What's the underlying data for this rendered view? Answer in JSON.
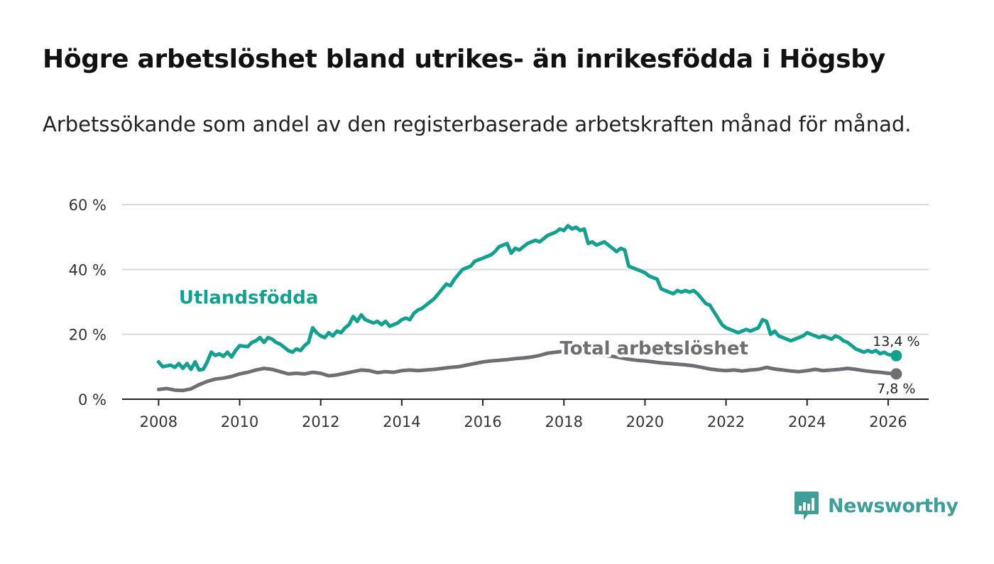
{
  "title": "Högre arbetslöshet bland utrikes- än inrikesfödda i Högsby",
  "subtitle": "Arbetssökande som andel av den registerbaserade arbetskraften månad för månad.",
  "brand": {
    "name": "Newsworthy"
  },
  "colors": {
    "foreign_born": "#14a090",
    "total": "#6e6e73",
    "grid": "#d9d9d9",
    "axis": "#222222",
    "brand": "#3f9e98"
  },
  "chart_data": {
    "type": "line",
    "xlabel": "",
    "ylabel": "",
    "xlim": [
      2007.1,
      2027.0
    ],
    "ylim": [
      0,
      60
    ],
    "x_ticks": [
      {
        "value": 2008,
        "label": "2008"
      },
      {
        "value": 2010,
        "label": "2010"
      },
      {
        "value": 2012,
        "label": "2012"
      },
      {
        "value": 2014,
        "label": "2014"
      },
      {
        "value": 2016,
        "label": "2016"
      },
      {
        "value": 2018,
        "label": "2018"
      },
      {
        "value": 2020,
        "label": "2020"
      },
      {
        "value": 2022,
        "label": "2022"
      },
      {
        "value": 2024,
        "label": "2024"
      },
      {
        "value": 2026,
        "label": "2026"
      }
    ],
    "y_ticks": [
      {
        "value": 0,
        "label": "0 %"
      },
      {
        "value": 20,
        "label": "20 %"
      },
      {
        "value": 40,
        "label": "40 %"
      },
      {
        "value": 60,
        "label": "60 %"
      }
    ],
    "grid": true,
    "series": [
      {
        "name": "Utlandsfödda",
        "color": "#14a090",
        "label_at": [
          2008.5,
          29.5
        ],
        "end_label": "13,4 %",
        "points": [
          [
            2008.0,
            11.5
          ],
          [
            2008.1,
            10.0
          ],
          [
            2008.3,
            10.5
          ],
          [
            2008.4,
            9.8
          ],
          [
            2008.5,
            11.0
          ],
          [
            2008.6,
            9.5
          ],
          [
            2008.7,
            11.0
          ],
          [
            2008.8,
            9.2
          ],
          [
            2008.9,
            11.5
          ],
          [
            2009.0,
            9.0
          ],
          [
            2009.1,
            9.2
          ],
          [
            2009.2,
            11.5
          ],
          [
            2009.3,
            14.5
          ],
          [
            2009.4,
            13.5
          ],
          [
            2009.5,
            14.0
          ],
          [
            2009.6,
            13.2
          ],
          [
            2009.7,
            14.5
          ],
          [
            2009.8,
            13.0
          ],
          [
            2009.9,
            15.0
          ],
          [
            2010.0,
            16.5
          ],
          [
            2010.2,
            16.2
          ],
          [
            2010.3,
            17.5
          ],
          [
            2010.4,
            18.0
          ],
          [
            2010.5,
            19.0
          ],
          [
            2010.6,
            17.5
          ],
          [
            2010.7,
            19.0
          ],
          [
            2010.8,
            18.5
          ],
          [
            2010.9,
            17.5
          ],
          [
            2011.0,
            17.0
          ],
          [
            2011.1,
            16.0
          ],
          [
            2011.2,
            15.0
          ],
          [
            2011.3,
            14.5
          ],
          [
            2011.4,
            15.5
          ],
          [
            2011.5,
            15.0
          ],
          [
            2011.6,
            16.5
          ],
          [
            2011.7,
            17.5
          ],
          [
            2011.8,
            22.0
          ],
          [
            2011.9,
            20.5
          ],
          [
            2012.0,
            19.5
          ],
          [
            2012.1,
            19.0
          ],
          [
            2012.2,
            20.5
          ],
          [
            2012.3,
            19.5
          ],
          [
            2012.4,
            21.0
          ],
          [
            2012.5,
            20.5
          ],
          [
            2012.6,
            22.0
          ],
          [
            2012.7,
            23.0
          ],
          [
            2012.8,
            25.5
          ],
          [
            2012.9,
            24.0
          ],
          [
            2013.0,
            26.0
          ],
          [
            2013.1,
            24.5
          ],
          [
            2013.2,
            24.0
          ],
          [
            2013.3,
            23.5
          ],
          [
            2013.4,
            24.0
          ],
          [
            2013.5,
            23.0
          ],
          [
            2013.6,
            24.0
          ],
          [
            2013.7,
            22.5
          ],
          [
            2013.8,
            23.0
          ],
          [
            2013.9,
            23.5
          ],
          [
            2014.0,
            24.5
          ],
          [
            2014.1,
            25.0
          ],
          [
            2014.2,
            24.5
          ],
          [
            2014.3,
            26.5
          ],
          [
            2014.4,
            27.5
          ],
          [
            2014.5,
            28.0
          ],
          [
            2014.6,
            29.0
          ],
          [
            2014.7,
            30.0
          ],
          [
            2014.8,
            31.0
          ],
          [
            2014.9,
            32.5
          ],
          [
            2015.0,
            34.0
          ],
          [
            2015.1,
            35.5
          ],
          [
            2015.2,
            35.0
          ],
          [
            2015.3,
            37.0
          ],
          [
            2015.4,
            38.5
          ],
          [
            2015.5,
            40.0
          ],
          [
            2015.6,
            40.5
          ],
          [
            2015.7,
            41.0
          ],
          [
            2015.8,
            42.5
          ],
          [
            2015.9,
            43.0
          ],
          [
            2016.0,
            43.5
          ],
          [
            2016.1,
            44.0
          ],
          [
            2016.2,
            44.5
          ],
          [
            2016.3,
            45.5
          ],
          [
            2016.4,
            47.0
          ],
          [
            2016.5,
            47.5
          ],
          [
            2016.6,
            48.0
          ],
          [
            2016.7,
            45.0
          ],
          [
            2016.8,
            46.5
          ],
          [
            2016.9,
            46.0
          ],
          [
            2017.0,
            47.0
          ],
          [
            2017.1,
            48.0
          ],
          [
            2017.2,
            48.5
          ],
          [
            2017.3,
            49.0
          ],
          [
            2017.4,
            48.5
          ],
          [
            2017.5,
            49.5
          ],
          [
            2017.6,
            50.5
          ],
          [
            2017.7,
            51.0
          ],
          [
            2017.8,
            51.5
          ],
          [
            2017.9,
            52.5
          ],
          [
            2018.0,
            52.0
          ],
          [
            2018.1,
            53.5
          ],
          [
            2018.2,
            52.5
          ],
          [
            2018.3,
            53.0
          ],
          [
            2018.4,
            52.0
          ],
          [
            2018.5,
            52.5
          ],
          [
            2018.6,
            48.0
          ],
          [
            2018.7,
            48.5
          ],
          [
            2018.8,
            47.5
          ],
          [
            2018.9,
            48.0
          ],
          [
            2019.0,
            48.5
          ],
          [
            2019.1,
            47.5
          ],
          [
            2019.2,
            46.5
          ],
          [
            2019.3,
            45.5
          ],
          [
            2019.4,
            46.5
          ],
          [
            2019.5,
            46.0
          ],
          [
            2019.6,
            41.0
          ],
          [
            2019.7,
            40.5
          ],
          [
            2019.8,
            40.0
          ],
          [
            2019.9,
            39.5
          ],
          [
            2020.0,
            39.0
          ],
          [
            2020.1,
            38.0
          ],
          [
            2020.2,
            37.5
          ],
          [
            2020.3,
            37.0
          ],
          [
            2020.4,
            34.0
          ],
          [
            2020.5,
            33.5
          ],
          [
            2020.6,
            33.0
          ],
          [
            2020.7,
            32.5
          ],
          [
            2020.8,
            33.5
          ],
          [
            2020.9,
            33.0
          ],
          [
            2021.0,
            33.5
          ],
          [
            2021.1,
            33.0
          ],
          [
            2021.2,
            33.5
          ],
          [
            2021.3,
            32.5
          ],
          [
            2021.4,
            31.0
          ],
          [
            2021.5,
            29.5
          ],
          [
            2021.6,
            29.0
          ],
          [
            2021.7,
            27.0
          ],
          [
            2021.8,
            25.0
          ],
          [
            2021.9,
            23.0
          ],
          [
            2022.0,
            22.0
          ],
          [
            2022.1,
            21.5
          ],
          [
            2022.2,
            21.0
          ],
          [
            2022.3,
            20.5
          ],
          [
            2022.4,
            21.0
          ],
          [
            2022.5,
            21.5
          ],
          [
            2022.6,
            21.0
          ],
          [
            2022.7,
            21.5
          ],
          [
            2022.8,
            22.0
          ],
          [
            2022.9,
            24.5
          ],
          [
            2023.0,
            24.0
          ],
          [
            2023.1,
            20.0
          ],
          [
            2023.2,
            21.0
          ],
          [
            2023.3,
            19.5
          ],
          [
            2023.4,
            19.0
          ],
          [
            2023.5,
            18.5
          ],
          [
            2023.6,
            18.0
          ],
          [
            2023.7,
            18.5
          ],
          [
            2023.8,
            19.0
          ],
          [
            2023.9,
            19.5
          ],
          [
            2024.0,
            20.5
          ],
          [
            2024.1,
            20.0
          ],
          [
            2024.2,
            19.5
          ],
          [
            2024.3,
            19.0
          ],
          [
            2024.4,
            19.5
          ],
          [
            2024.5,
            19.0
          ],
          [
            2024.6,
            18.5
          ],
          [
            2024.7,
            19.5
          ],
          [
            2024.8,
            19.0
          ],
          [
            2024.9,
            18.0
          ],
          [
            2025.0,
            17.5
          ],
          [
            2025.1,
            16.5
          ],
          [
            2025.2,
            15.5
          ],
          [
            2025.3,
            15.0
          ],
          [
            2025.4,
            14.5
          ],
          [
            2025.5,
            15.0
          ],
          [
            2025.6,
            14.5
          ],
          [
            2025.7,
            15.0
          ],
          [
            2025.8,
            14.0
          ],
          [
            2025.9,
            14.5
          ],
          [
            2026.0,
            13.8
          ],
          [
            2026.2,
            13.4
          ]
        ]
      },
      {
        "name": "Total arbetslöshet",
        "color": "#6e6e73",
        "label_at": [
          2017.9,
          13.8
        ],
        "end_label": "7,8 %",
        "points": [
          [
            2008.0,
            3.0
          ],
          [
            2008.2,
            3.3
          ],
          [
            2008.4,
            2.8
          ],
          [
            2008.6,
            2.7
          ],
          [
            2008.8,
            3.2
          ],
          [
            2009.0,
            4.5
          ],
          [
            2009.2,
            5.5
          ],
          [
            2009.4,
            6.2
          ],
          [
            2009.6,
            6.5
          ],
          [
            2009.8,
            7.0
          ],
          [
            2010.0,
            7.8
          ],
          [
            2010.2,
            8.3
          ],
          [
            2010.4,
            9.0
          ],
          [
            2010.6,
            9.5
          ],
          [
            2010.8,
            9.2
          ],
          [
            2011.0,
            8.5
          ],
          [
            2011.2,
            7.8
          ],
          [
            2011.4,
            8.0
          ],
          [
            2011.6,
            7.8
          ],
          [
            2011.8,
            8.3
          ],
          [
            2012.0,
            8.0
          ],
          [
            2012.2,
            7.2
          ],
          [
            2012.4,
            7.5
          ],
          [
            2012.6,
            8.0
          ],
          [
            2012.8,
            8.5
          ],
          [
            2013.0,
            9.0
          ],
          [
            2013.2,
            8.8
          ],
          [
            2013.4,
            8.2
          ],
          [
            2013.6,
            8.5
          ],
          [
            2013.8,
            8.3
          ],
          [
            2014.0,
            8.8
          ],
          [
            2014.2,
            9.0
          ],
          [
            2014.4,
            8.8
          ],
          [
            2014.6,
            9.0
          ],
          [
            2014.8,
            9.2
          ],
          [
            2015.0,
            9.5
          ],
          [
            2015.2,
            9.8
          ],
          [
            2015.4,
            10.0
          ],
          [
            2015.6,
            10.5
          ],
          [
            2015.8,
            11.0
          ],
          [
            2016.0,
            11.5
          ],
          [
            2016.2,
            11.8
          ],
          [
            2016.4,
            12.0
          ],
          [
            2016.6,
            12.2
          ],
          [
            2016.8,
            12.5
          ],
          [
            2017.0,
            12.7
          ],
          [
            2017.2,
            13.0
          ],
          [
            2017.4,
            13.5
          ],
          [
            2017.6,
            14.2
          ],
          [
            2017.8,
            14.5
          ],
          [
            2018.0,
            14.8
          ],
          [
            2018.2,
            15.0
          ],
          [
            2018.4,
            14.5
          ],
          [
            2018.6,
            14.2
          ],
          [
            2018.8,
            14.0
          ],
          [
            2019.0,
            13.5
          ],
          [
            2019.2,
            13.2
          ],
          [
            2019.4,
            12.8
          ],
          [
            2019.6,
            12.3
          ],
          [
            2019.8,
            12.0
          ],
          [
            2020.0,
            11.8
          ],
          [
            2020.2,
            11.5
          ],
          [
            2020.4,
            11.2
          ],
          [
            2020.6,
            11.0
          ],
          [
            2020.8,
            10.8
          ],
          [
            2021.0,
            10.6
          ],
          [
            2021.2,
            10.3
          ],
          [
            2021.4,
            9.8
          ],
          [
            2021.6,
            9.3
          ],
          [
            2021.8,
            9.0
          ],
          [
            2022.0,
            8.8
          ],
          [
            2022.2,
            9.0
          ],
          [
            2022.4,
            8.7
          ],
          [
            2022.6,
            9.0
          ],
          [
            2022.8,
            9.2
          ],
          [
            2023.0,
            9.8
          ],
          [
            2023.2,
            9.3
          ],
          [
            2023.4,
            9.0
          ],
          [
            2023.6,
            8.7
          ],
          [
            2023.8,
            8.5
          ],
          [
            2024.0,
            8.8
          ],
          [
            2024.2,
            9.2
          ],
          [
            2024.4,
            8.8
          ],
          [
            2024.6,
            9.0
          ],
          [
            2024.8,
            9.2
          ],
          [
            2025.0,
            9.5
          ],
          [
            2025.2,
            9.2
          ],
          [
            2025.4,
            8.8
          ],
          [
            2025.6,
            8.5
          ],
          [
            2025.8,
            8.3
          ],
          [
            2026.0,
            8.0
          ],
          [
            2026.2,
            7.8
          ]
        ]
      }
    ]
  }
}
